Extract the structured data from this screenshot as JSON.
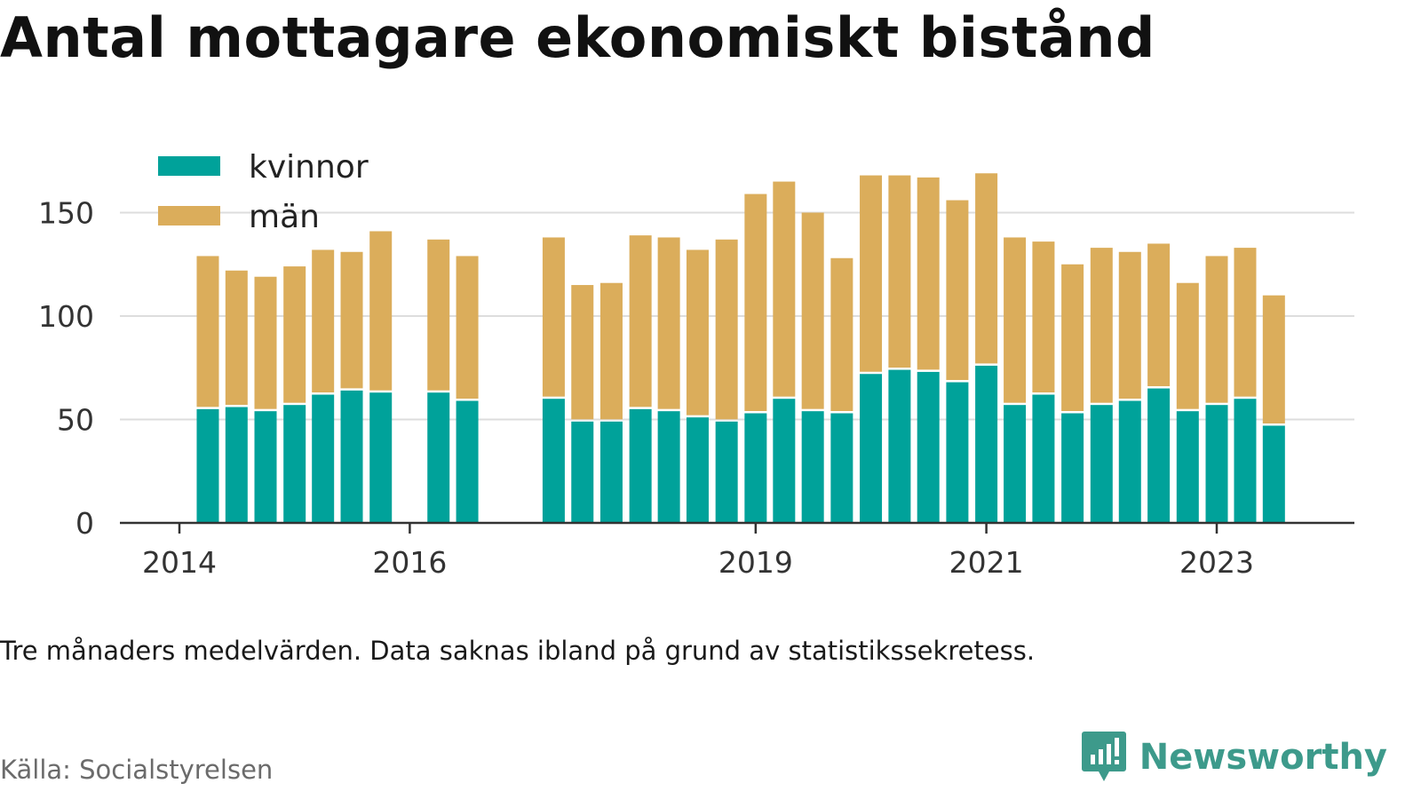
{
  "title": "Antal mottagare ekonomiskt bistånd",
  "note": "Tre månaders medelvärden. Data saknas ibland på grund av statistikssekretess.",
  "source": "Källa: Socialstyrelsen",
  "brand": {
    "name": "Newsworthy",
    "icon": "newsworthy-logo-icon",
    "color": "#3d9a8b"
  },
  "chart_data": {
    "type": "bar",
    "stacked": true,
    "title": "Antal mottagare ekonomiskt bistånd",
    "colors": {
      "kvinnor": "#00a29a",
      "män": "#dbad5b",
      "grid": "#dddddd",
      "axis": "#333333"
    },
    "legend": {
      "placement": "top-left",
      "entries": [
        "kvinnor",
        "män"
      ]
    },
    "grid": true,
    "ylim": [
      0,
      170
    ],
    "yticks": [
      0,
      50,
      100,
      150
    ],
    "xticks": [
      "2014",
      "2016",
      "2019",
      "2021",
      "2023"
    ],
    "x": [
      "2014-04",
      "2014-07",
      "2014-10",
      "2015-01",
      "2015-04",
      "2015-07",
      "2015-10",
      "2016-04",
      "2016-07",
      "2017-04",
      "2017-07",
      "2017-10",
      "2018-01",
      "2018-04",
      "2018-07",
      "2018-10",
      "2019-01",
      "2019-04",
      "2019-07",
      "2019-10",
      "2020-01",
      "2020-04",
      "2020-07",
      "2020-10",
      "2021-01",
      "2021-04",
      "2021-07",
      "2021-10",
      "2022-01",
      "2022-04",
      "2022-07",
      "2022-10",
      "2023-01",
      "2023-04",
      "2023-07"
    ],
    "series": [
      {
        "name": "kvinnor",
        "values": [
          55,
          56,
          54,
          57,
          62,
          64,
          63,
          63,
          59,
          60,
          49,
          49,
          55,
          54,
          51,
          49,
          53,
          60,
          54,
          53,
          72,
          74,
          73,
          68,
          76,
          57,
          62,
          53,
          57,
          59,
          65,
          54,
          57,
          60,
          47
        ]
      },
      {
        "name": "män",
        "values": [
          74,
          66,
          65,
          67,
          70,
          67,
          78,
          74,
          70,
          78,
          66,
          67,
          84,
          84,
          81,
          88,
          106,
          105,
          96,
          75,
          96,
          94,
          94,
          88,
          93,
          81,
          74,
          72,
          76,
          72,
          70,
          62,
          72,
          73,
          63
        ]
      }
    ]
  }
}
